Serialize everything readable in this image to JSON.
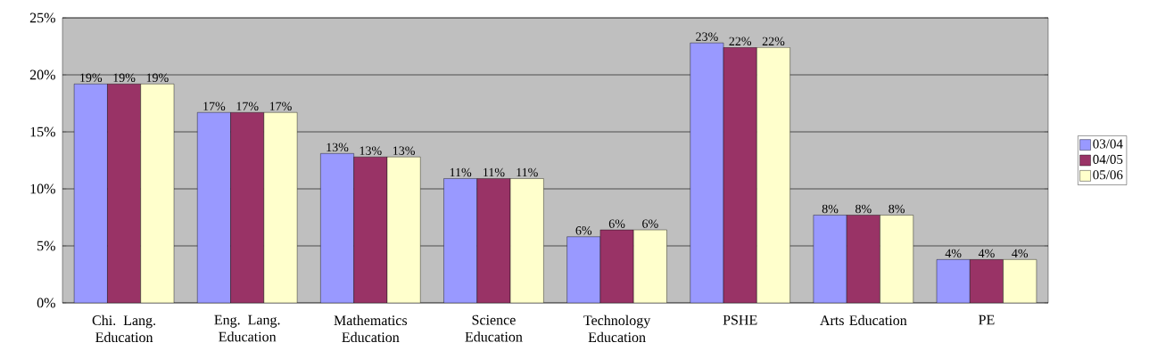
{
  "chart_data": {
    "type": "bar",
    "categories": [
      "Chi. Lang. Education",
      "Eng. Lang. Education",
      "Mathematics Education",
      "Science Education",
      "Technology Education",
      "PSHE",
      "Arts Education",
      "PE"
    ],
    "series": [
      {
        "name": "03/04",
        "color": "#9999ff",
        "values": [
          19.2,
          16.7,
          13.1,
          10.9,
          5.8,
          22.8,
          7.7,
          3.8
        ],
        "value_labels": [
          "19%",
          "17%",
          "13%",
          "11%",
          "6%",
          "23%",
          "8%",
          "4%"
        ]
      },
      {
        "name": "04/05",
        "color": "#993366",
        "values": [
          19.2,
          16.7,
          12.8,
          10.9,
          6.4,
          22.4,
          7.7,
          3.8
        ],
        "value_labels": [
          "19%",
          "17%",
          "13%",
          "11%",
          "6%",
          "22%",
          "8%",
          "4%"
        ]
      },
      {
        "name": "05/06",
        "color": "#ffffcc",
        "values": [
          19.2,
          16.7,
          12.8,
          10.9,
          6.4,
          22.4,
          7.7,
          3.8
        ],
        "value_labels": [
          "19%",
          "17%",
          "13%",
          "11%",
          "6%",
          "22%",
          "8%",
          "4%"
        ]
      }
    ],
    "ylim": [
      0,
      25
    ],
    "yticks": [
      {
        "value": 0,
        "label": "0%"
      },
      {
        "value": 5,
        "label": "5%"
      },
      {
        "value": 10,
        "label": "10%"
      },
      {
        "value": 15,
        "label": "15%"
      },
      {
        "value": 20,
        "label": "20%"
      },
      {
        "value": 25,
        "label": "25%"
      }
    ],
    "grid": "y",
    "legend": "right"
  }
}
